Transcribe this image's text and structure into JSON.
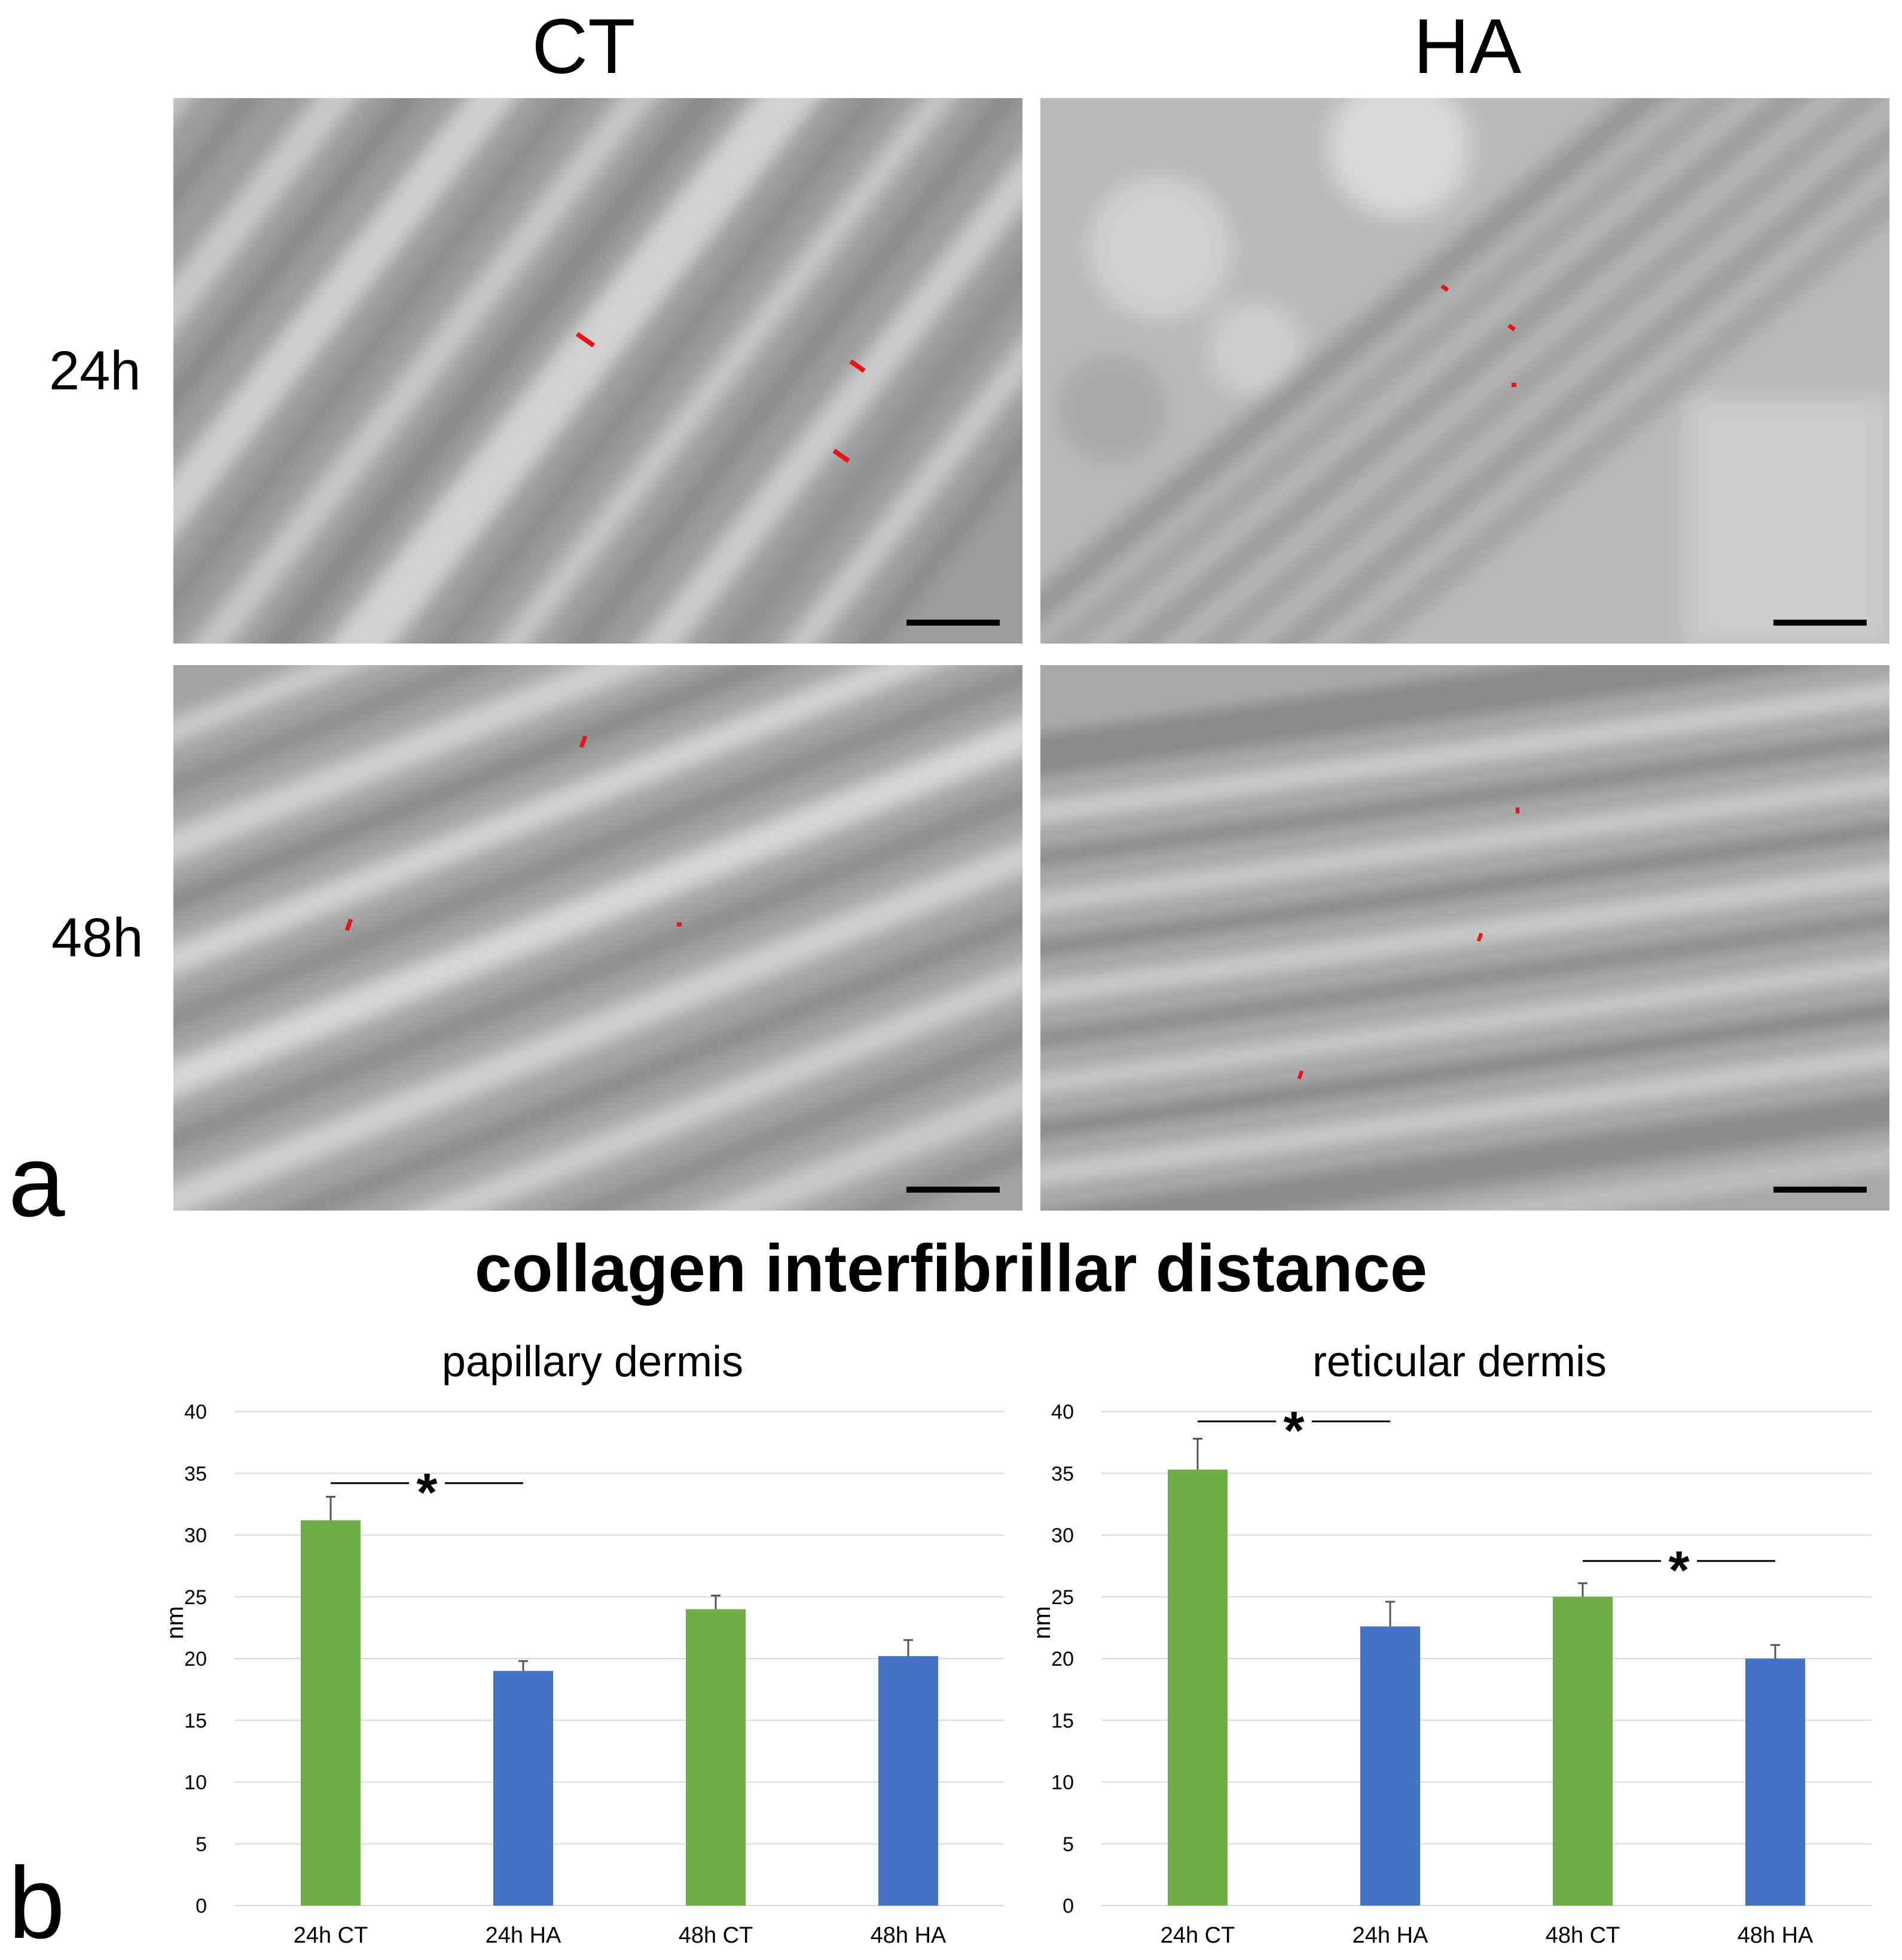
{
  "figure": {
    "panel_a_letter": "a",
    "panel_b_letter": "b",
    "columns": [
      "CT",
      "HA"
    ],
    "rows": [
      "24h",
      "48h"
    ],
    "colors": {
      "ct_bar": "#70AD47",
      "ha_bar": "#4472C4",
      "measure_marker": "#E8141B",
      "gridline": "#D9D9D9",
      "axis_text": "#000000"
    }
  },
  "chart_title": "collagen interfibrillar distance",
  "chart_data": [
    {
      "type": "bar",
      "title": "papillary dermis",
      "xlabel": "",
      "ylabel": "nm",
      "ylim": [
        0,
        40
      ],
      "yticks": [
        "0",
        "5",
        "10",
        "15",
        "20",
        "25",
        "30",
        "35",
        "40"
      ],
      "grid": true,
      "categories": [
        "24h CT",
        "24h HA",
        "48h CT",
        "48h HA"
      ],
      "values": [
        31.2,
        19.0,
        24.0,
        20.2
      ],
      "errors": [
        1.9,
        0.8,
        1.1,
        1.3
      ],
      "bar_colors": [
        "#70AD47",
        "#4472C4",
        "#70AD47",
        "#4472C4"
      ],
      "significance": [
        {
          "from": "24h CT",
          "to": "24h HA",
          "label": "*",
          "level": 34.2
        }
      ]
    },
    {
      "type": "bar",
      "title": "reticular dermis",
      "xlabel": "",
      "ylabel": "nm",
      "ylim": [
        0,
        40
      ],
      "yticks": [
        "0",
        "5",
        "10",
        "15",
        "20",
        "25",
        "30",
        "35",
        "40"
      ],
      "grid": true,
      "categories": [
        "24h CT",
        "24h HA",
        "48h CT",
        "48h HA"
      ],
      "values": [
        35.3,
        22.6,
        25.0,
        20.0
      ],
      "errors": [
        2.5,
        2.0,
        1.1,
        1.1
      ],
      "bar_colors": [
        "#70AD47",
        "#4472C4",
        "#70AD47",
        "#4472C4"
      ],
      "significance": [
        {
          "from": "24h CT",
          "to": "24h HA",
          "label": "*",
          "level": 39.2
        },
        {
          "from": "48h CT",
          "to": "48h HA",
          "label": "*",
          "level": 27.9
        }
      ]
    }
  ]
}
